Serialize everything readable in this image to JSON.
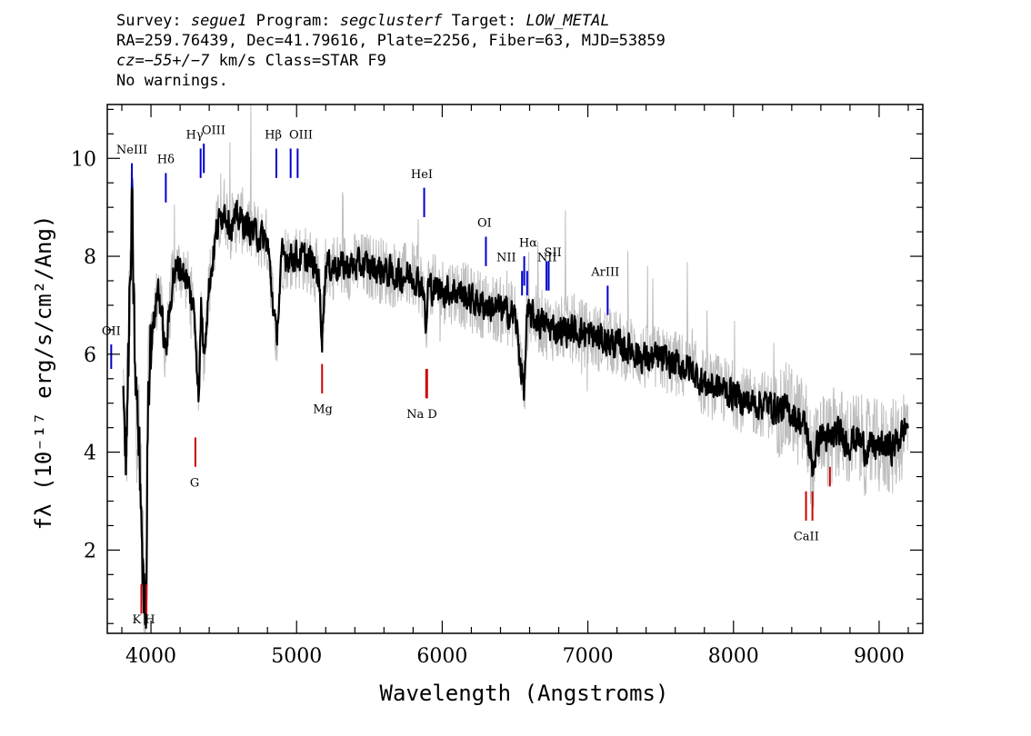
{
  "header": {
    "survey_label": "Survey:",
    "survey": "segue1",
    "program_label": "Program:",
    "program": "segclusterf",
    "target_label": "Target:",
    "target": "LOW_METAL",
    "line2": "RA=259.76439, Dec=41.79616, Plate=2256, Fiber=63, MJD=53859",
    "cz_label": "cz=",
    "cz_value": "−55+/−7",
    "cz_rest": " km/s Class=STAR F9",
    "line4": "No warnings."
  },
  "chart_data": {
    "type": "line",
    "xlabel": "Wavelength (Angstroms)",
    "ylabel": "fλ (10⁻¹⁷ erg/s/cm²/Ang)",
    "xlim": [
      3700,
      9300
    ],
    "ylim": [
      0.3,
      11.1
    ],
    "x_ticks": [
      4000,
      5000,
      6000,
      7000,
      8000,
      9000
    ],
    "y_ticks": [
      2,
      4,
      6,
      8,
      10
    ],
    "grid": false,
    "colors": {
      "flux": "#000000",
      "error": "#bdbdbd",
      "emission": "#0000cc",
      "absorption": "#cc0000"
    },
    "series": [
      {
        "role": "flux",
        "x": [
          3810,
          3830,
          3850,
          3870,
          3890,
          3910,
          3930,
          3950,
          3966,
          3980,
          4000,
          4050,
          4102,
          4150,
          4200,
          4250,
          4300,
          4330,
          4345,
          4360,
          4400,
          4450,
          4500,
          4550,
          4600,
          4700,
          4800,
          4861,
          4900,
          5000,
          5100,
          5150,
          5175,
          5200,
          5300,
          5400,
          5500,
          5600,
          5700,
          5800,
          5870,
          5890,
          5900,
          6000,
          6100,
          6200,
          6300,
          6400,
          6500,
          6563,
          6580,
          6600,
          6700,
          6800,
          6900,
          7000,
          7100,
          7200,
          7300,
          7400,
          7500,
          7600,
          7700,
          7800,
          7900,
          8000,
          8100,
          8200,
          8300,
          8400,
          8498,
          8542,
          8600,
          8662,
          8700,
          8800,
          8850,
          8900,
          9000,
          9100,
          9200
        ],
        "y": [
          5.2,
          3.8,
          6.5,
          8.9,
          5.8,
          4.5,
          3.2,
          1.0,
          0.9,
          5.5,
          6.2,
          7.4,
          6.0,
          7.6,
          7.8,
          7.5,
          6.8,
          5.0,
          7.2,
          6.0,
          7.4,
          8.5,
          9.0,
          8.6,
          8.8,
          8.5,
          8.3,
          6.3,
          8.0,
          8.0,
          7.9,
          7.6,
          6.4,
          7.8,
          7.8,
          7.8,
          7.8,
          7.7,
          7.6,
          7.6,
          7.4,
          6.3,
          7.4,
          7.3,
          7.3,
          7.1,
          7.0,
          6.9,
          6.8,
          5.2,
          6.7,
          6.8,
          6.6,
          6.5,
          6.5,
          6.4,
          6.3,
          6.2,
          6.1,
          5.9,
          5.9,
          5.8,
          5.7,
          5.4,
          5.3,
          5.2,
          5.0,
          5.0,
          4.9,
          4.8,
          4.5,
          3.7,
          4.4,
          4.2,
          4.4,
          4.2,
          4.3,
          4.1,
          4.1,
          4.1,
          4.6
        ]
      }
    ],
    "lines": [
      {
        "label": "OII",
        "x": 3727,
        "kind": "emission",
        "y_top": 6.2,
        "y_bottom": 5.7
      },
      {
        "label": "NeIII",
        "x": 3869,
        "kind": "emission",
        "y_top": 9.9,
        "y_bottom": 9.4
      },
      {
        "label": "Hδ",
        "x": 4102,
        "kind": "emission",
        "y_top": 9.7,
        "y_bottom": 9.1
      },
      {
        "label": "Hγ",
        "x": 4341,
        "kind": "emission",
        "y_top": 10.2,
        "y_bottom": 9.6
      },
      {
        "label": "OIII",
        "x": 4363,
        "kind": "emission",
        "y_top": 10.3,
        "y_bottom": 9.7
      },
      {
        "label": "Hβ",
        "x": 4861,
        "kind": "emission",
        "y_top": 10.2,
        "y_bottom": 9.6
      },
      {
        "label": "OIII",
        "x": 4959,
        "kind": "emission",
        "y_top": 10.2,
        "y_bottom": 9.6
      },
      {
        "label": "OIII",
        "x": 5007,
        "kind": "emission",
        "y_top": 10.2,
        "y_bottom": 9.6
      },
      {
        "label": "HeI",
        "x": 5876,
        "kind": "emission",
        "y_top": 9.4,
        "y_bottom": 8.8
      },
      {
        "label": "OI",
        "x": 6300,
        "kind": "emission",
        "y_top": 8.4,
        "y_bottom": 7.8
      },
      {
        "label": "NII",
        "x": 6548,
        "kind": "emission",
        "y_top": 7.7,
        "y_bottom": 7.2
      },
      {
        "label": "Hα",
        "x": 6563,
        "kind": "emission",
        "y_top": 8.0,
        "y_bottom": 7.4
      },
      {
        "label": "NII",
        "x": 6583,
        "kind": "emission",
        "y_top": 7.7,
        "y_bottom": 7.2
      },
      {
        "label": "SII",
        "x": 6716,
        "kind": "emission",
        "y_top": 7.9,
        "y_bottom": 7.3
      },
      {
        "label": "SII",
        "x": 6731,
        "kind": "emission",
        "y_top": 7.9,
        "y_bottom": 7.3
      },
      {
        "label": "ArIII",
        "x": 7136,
        "kind": "emission",
        "y_top": 7.4,
        "y_bottom": 6.8
      },
      {
        "label": "K",
        "x": 3934,
        "kind": "absorption",
        "y_top": 1.3,
        "y_bottom": 0.7
      },
      {
        "label": "H",
        "x": 3969,
        "kind": "absorption",
        "y_top": 1.3,
        "y_bottom": 0.7
      },
      {
        "label": "G",
        "x": 4305,
        "kind": "absorption",
        "y_top": 4.3,
        "y_bottom": 3.7
      },
      {
        "label": "Mg",
        "x": 5175,
        "kind": "absorption",
        "y_top": 5.8,
        "y_bottom": 5.2
      },
      {
        "label": "Na",
        "x": 5890,
        "kind": "absorption",
        "y_top": 5.7,
        "y_bottom": 5.1
      },
      {
        "label": "D",
        "x": 5896,
        "kind": "absorption",
        "y_top": 5.7,
        "y_bottom": 5.1
      },
      {
        "label": "CaII",
        "x": 8498,
        "kind": "absorption",
        "y_top": 3.2,
        "y_bottom": 2.6
      },
      {
        "label": "CaII",
        "x": 8542,
        "kind": "absorption",
        "y_top": 3.2,
        "y_bottom": 2.6
      },
      {
        "label": "CaII",
        "x": 8662,
        "kind": "absorption",
        "y_top": 3.7,
        "y_bottom": 3.3
      }
    ],
    "line_text": [
      {
        "text": "OII",
        "x": 3727,
        "y": 6.4
      },
      {
        "text": "NeIII",
        "x": 3869,
        "y": 10.1
      },
      {
        "text": "Hδ",
        "x": 4102,
        "y": 9.9
      },
      {
        "text": "Hγ",
        "x": 4300,
        "y": 10.4
      },
      {
        "text": "OIII",
        "x": 4430,
        "y": 10.5
      },
      {
        "text": "Hβ",
        "x": 4840,
        "y": 10.4
      },
      {
        "text": "OIII",
        "x": 5030,
        "y": 10.4
      },
      {
        "text": "HeI",
        "x": 5860,
        "y": 9.6
      },
      {
        "text": "OI",
        "x": 6290,
        "y": 8.6
      },
      {
        "text": "NII",
        "x": 6440,
        "y": 7.9
      },
      {
        "text": "Hα",
        "x": 6590,
        "y": 8.2
      },
      {
        "text": "NII",
        "x": 6720,
        "y": 7.9
      },
      {
        "text": "SII",
        "x": 6760,
        "y": 8.0
      },
      {
        "text": "ArIII",
        "x": 7120,
        "y": 7.6
      },
      {
        "text": "K H",
        "x": 3950,
        "y": 0.5
      },
      {
        "text": "G",
        "x": 4300,
        "y": 3.3
      },
      {
        "text": "Mg",
        "x": 5180,
        "y": 4.8
      },
      {
        "text": "Na  D",
        "x": 5860,
        "y": 4.7
      },
      {
        "text": "CaII",
        "x": 8500,
        "y": 2.2
      }
    ]
  }
}
